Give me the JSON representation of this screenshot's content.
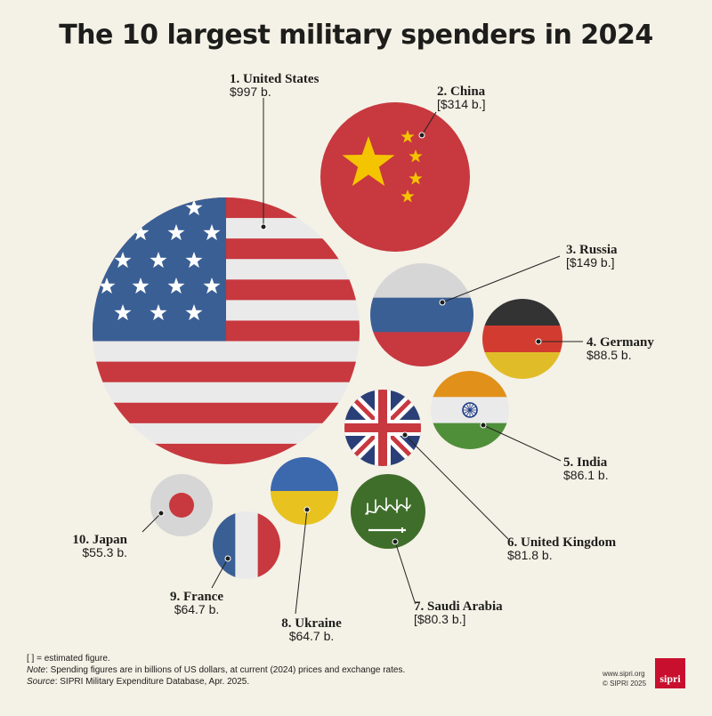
{
  "title": "The 10 largest military spenders in 2024",
  "chart_data": {
    "type": "bubble",
    "title": "The 10 largest military spenders in 2024",
    "unit": "b.",
    "items": [
      {
        "rank": "1.",
        "country": "United States",
        "value": 997,
        "value_label": "$997 b.",
        "estimated": false,
        "flag": "usa-flag-icon"
      },
      {
        "rank": "2.",
        "country": "China",
        "value": 314,
        "value_label": "[$314 b.]",
        "estimated": true,
        "flag": "china-flag-icon"
      },
      {
        "rank": "3.",
        "country": "Russia",
        "value": 149,
        "value_label": "[$149 b.]",
        "estimated": true,
        "flag": "russia-flag-icon"
      },
      {
        "rank": "4.",
        "country": "Germany",
        "value": 88.5,
        "value_label": "$88.5 b.",
        "estimated": false,
        "flag": "germany-flag-icon"
      },
      {
        "rank": "5.",
        "country": "India",
        "value": 86.1,
        "value_label": "$86.1 b.",
        "estimated": false,
        "flag": "india-flag-icon"
      },
      {
        "rank": "6.",
        "country": "United Kingdom",
        "value": 81.8,
        "value_label": "$81.8 b.",
        "estimated": false,
        "flag": "uk-flag-icon"
      },
      {
        "rank": "7.",
        "country": "Saudi Arabia",
        "value": 80.3,
        "value_label": "[$80.3 b.]",
        "estimated": true,
        "flag": "saudi-arabia-flag-icon"
      },
      {
        "rank": "8.",
        "country": "Ukraine",
        "value": 64.7,
        "value_label": "$64.7 b.",
        "estimated": false,
        "flag": "ukraine-flag-icon"
      },
      {
        "rank": "9.",
        "country": "France",
        "value": 64.7,
        "value_label": "$64.7 b.",
        "estimated": false,
        "flag": "france-flag-icon"
      },
      {
        "rank": "10.",
        "country": "Japan",
        "value": 55.3,
        "value_label": "$55.3 b.",
        "estimated": false,
        "flag": "japan-flag-icon"
      }
    ]
  },
  "footer": {
    "estimate_note": "[ ] = estimated figure.",
    "note_label": "Note",
    "note_text": ": Spending figures are in billions of US dollars, at current (2024) prices and exchange rates.",
    "source_label": "Source",
    "source_text": ": SIPRI Military Expenditure Database, Apr. 2025.",
    "site": "www.sipri.org",
    "copyright": "© SIPRI 2025",
    "logo": "sipri"
  },
  "colors": {
    "background": "#f4f1e6",
    "flag_red": "#c8383f",
    "flag_blue": "#3a5f95",
    "flag_gold": "#f5c400",
    "flag_green": "#2f7a2e",
    "sipri_red": "#c8102e"
  }
}
